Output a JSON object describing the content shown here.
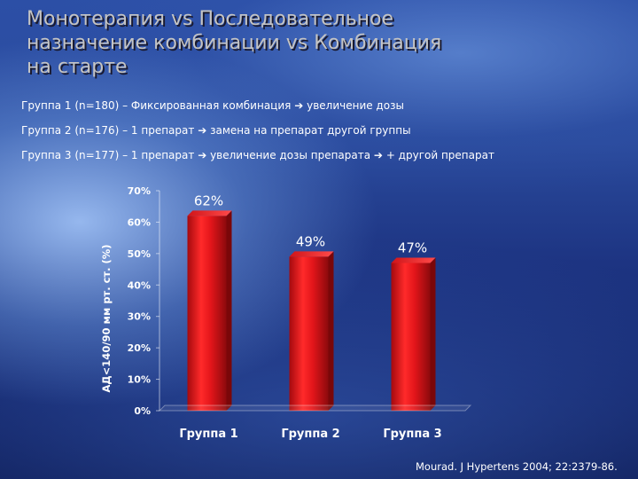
{
  "title": {
    "line1": "Монотерапия vs Последовательное",
    "line2": "назначение комбинации vs Комбинация",
    "line3": "на старте"
  },
  "groups": [
    {
      "prefix": "Группа 1 (n=180) – Фиксированная комбинация",
      "step2": "увеличение дозы",
      "step3": ""
    },
    {
      "prefix": "Группа 2 (n=176) – 1 препарат",
      "step2": "замена на препарат другой группы",
      "step3": ""
    },
    {
      "prefix": "Группа 3 (n=177) – 1 препарат",
      "step2": "увеличение дозы препарата",
      "step3": "+ другой препарат"
    }
  ],
  "arrow_glyph": "➔",
  "chart_data": {
    "type": "bar",
    "categories": [
      "Группа 1",
      "Группа 2",
      "Группа 3"
    ],
    "values": [
      62,
      49,
      47
    ],
    "data_labels": [
      "62%",
      "49%",
      "47%"
    ],
    "ylabel": "АД<140/90 мм рт. ст. (%)",
    "ylim": [
      0,
      70
    ],
    "yticks": [
      0,
      10,
      20,
      30,
      40,
      50,
      60,
      70
    ],
    "ytick_labels": [
      "0%",
      "10%",
      "20%",
      "30%",
      "40%",
      "50%",
      "60%",
      "70%"
    ],
    "grid": false,
    "bar_color": "#e0161b"
  },
  "citation": "Mourad. J Hypertens 2004; 22:2379-86."
}
